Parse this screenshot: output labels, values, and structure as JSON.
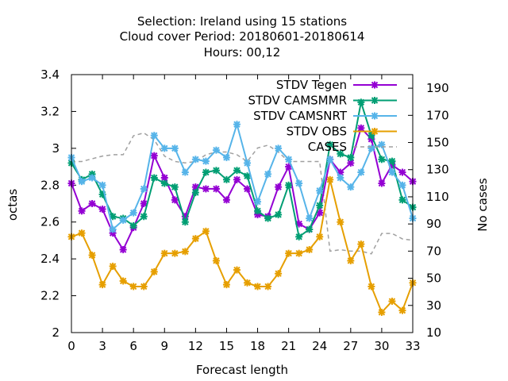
{
  "chart_data": {
    "type": "line",
    "title": [
      "Selection: Ireland using    15 stations",
      "Cloud cover   Period: 20180601-20180614",
      "Hours:  00,12"
    ],
    "xlabel": "Forecast length",
    "ylabel": "octas",
    "y2label": "No cases",
    "xlim": [
      0,
      33
    ],
    "ylim": [
      2.0,
      3.4
    ],
    "y2lim": [
      10,
      200
    ],
    "xticks": [
      0,
      3,
      6,
      9,
      12,
      15,
      18,
      21,
      24,
      27,
      30,
      33
    ],
    "yticks": [
      2,
      2.2,
      2.4,
      2.6,
      2.8,
      3,
      3.2,
      3.4
    ],
    "yticklabels": [
      "2",
      "2.2",
      "2.4",
      "2.6",
      "2.8",
      "3",
      "3.2",
      "3.4"
    ],
    "y2ticks": [
      10,
      30,
      50,
      70,
      90,
      110,
      130,
      150,
      170,
      190
    ],
    "legend_position": "top-right",
    "x": [
      0,
      1,
      2,
      3,
      4,
      5,
      6,
      7,
      8,
      9,
      10,
      11,
      12,
      13,
      14,
      15,
      16,
      17,
      18,
      19,
      20,
      21,
      22,
      23,
      24,
      25,
      26,
      27,
      28,
      29,
      30,
      31,
      32,
      33
    ],
    "series": [
      {
        "name": "STDV Tegen",
        "color": "#9400d3",
        "marker": "x",
        "values": [
          2.81,
          2.66,
          2.7,
          2.67,
          2.54,
          2.45,
          2.57,
          2.7,
          2.96,
          2.84,
          2.72,
          2.63,
          2.79,
          2.78,
          2.78,
          2.72,
          2.83,
          2.78,
          2.64,
          2.63,
          2.79,
          2.9,
          2.59,
          2.56,
          2.65,
          2.94,
          2.87,
          2.92,
          3.11,
          3.05,
          2.81,
          2.91,
          2.87,
          2.82
        ]
      },
      {
        "name": "STDV CAMSMMR",
        "color": "#009e73",
        "marker": "x",
        "values": [
          2.92,
          2.83,
          2.86,
          2.75,
          2.63,
          2.62,
          2.58,
          2.63,
          2.84,
          2.81,
          2.79,
          2.6,
          2.76,
          2.87,
          2.88,
          2.83,
          2.88,
          2.85,
          2.66,
          2.62,
          2.64,
          2.8,
          2.52,
          2.56,
          2.69,
          3.02,
          2.97,
          2.95,
          3.25,
          3.07,
          2.94,
          2.93,
          2.72,
          2.68
        ]
      },
      {
        "name": "STDV CAMSNRT",
        "color": "#56b4e9",
        "marker": "x",
        "values": [
          2.95,
          2.82,
          2.84,
          2.8,
          2.56,
          2.61,
          2.65,
          2.78,
          3.07,
          3.0,
          3.0,
          2.87,
          2.94,
          2.93,
          2.99,
          2.95,
          3.13,
          2.92,
          2.71,
          2.86,
          3.0,
          2.94,
          2.81,
          2.62,
          2.77,
          2.94,
          2.84,
          2.79,
          2.87,
          3.0,
          3.02,
          2.87,
          2.8,
          2.62
        ]
      },
      {
        "name": "STDV OBS",
        "color": "#e69f00",
        "marker": "x",
        "values": [
          2.52,
          2.54,
          2.42,
          2.26,
          2.36,
          2.28,
          2.25,
          2.25,
          2.33,
          2.43,
          2.43,
          2.44,
          2.51,
          2.55,
          2.39,
          2.26,
          2.34,
          2.27,
          2.25,
          2.25,
          2.32,
          2.43,
          2.43,
          2.45,
          2.52,
          2.83,
          2.6,
          2.39,
          2.48,
          2.25,
          2.11,
          2.17,
          2.12,
          2.27
        ]
      },
      {
        "name": "CASES",
        "color": "#a0a0a0",
        "dashed": true,
        "axis": "y2",
        "values": [
          136,
          136,
          138,
          140,
          141,
          141,
          155,
          157,
          152,
          140,
          136,
          135,
          136,
          141,
          143,
          143,
          141,
          136,
          146,
          148,
          143,
          136,
          136,
          136,
          136,
          70,
          71,
          70,
          70,
          68,
          83,
          83,
          79,
          78
        ]
      }
    ]
  }
}
